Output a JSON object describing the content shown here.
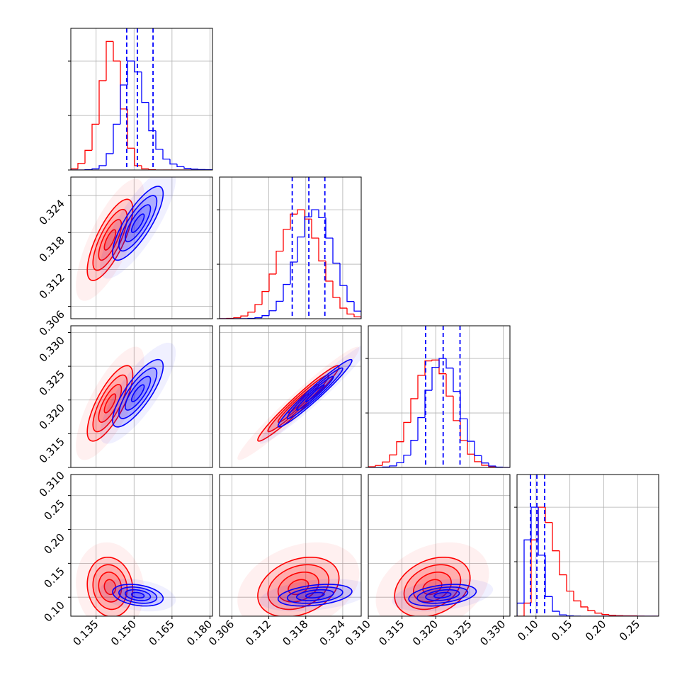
{
  "chart_data": {
    "type": "corner",
    "grid": true,
    "parameters": [
      {
        "lim": [
          0.125,
          0.181
        ],
        "ticks": [
          0.135,
          {
            "value": 0.15,
            "label": "0.150"
          },
          0.165,
          {
            "value": 0.18,
            "label": "0.180"
          }
        ],
        "bins": [
          0.125,
          0.1278,
          0.1306,
          0.1334,
          0.1362,
          0.139,
          0.1418,
          0.1446,
          0.1474,
          0.1502,
          0.153,
          0.1558,
          0.1586,
          0.1614,
          0.1642,
          0.167,
          0.1698,
          0.1726,
          0.1754,
          0.1782,
          0.181
        ]
      },
      {
        "lim": [
          0.304,
          0.327
        ],
        "ticks": [
          0.306,
          0.312,
          0.318,
          0.324
        ],
        "bins": [
          0.304,
          0.30515,
          0.3063,
          0.30745,
          0.3086,
          0.30975,
          0.3109,
          0.31205,
          0.3132,
          0.31435,
          0.3155,
          0.31665,
          0.3178,
          0.31895,
          0.3201,
          0.32125,
          0.3224,
          0.32355,
          0.3247,
          0.32585,
          0.327
        ]
      },
      {
        "lim": [
          0.31,
          0.331
        ],
        "ticks": [
          {
            "value": 0.31,
            "label": "0.310"
          },
          0.315,
          {
            "value": 0.32,
            "label": "0.320"
          },
          0.325,
          {
            "value": 0.33,
            "label": "0.330"
          }
        ],
        "bins": [
          0.31,
          0.31105,
          0.3121,
          0.31315,
          0.3142,
          0.31525,
          0.3163,
          0.31735,
          0.3184,
          0.31945,
          0.3205,
          0.32155,
          0.3226,
          0.32365,
          0.3247,
          0.32575,
          0.3268,
          0.32785,
          0.3289,
          0.32995,
          0.331
        ]
      },
      {
        "lim": [
          0.072,
          0.281
        ],
        "ticks": [
          {
            "value": 0.1,
            "label": "0.10"
          },
          0.15,
          {
            "value": 0.2,
            "label": "0.20"
          },
          0.25
        ],
        "bins": [
          0.072,
          0.08245,
          0.0929,
          0.10335,
          0.1138,
          0.12425,
          0.1347,
          0.14515,
          0.1556,
          0.16605,
          0.1765,
          0.18695,
          0.1974,
          0.20785,
          0.2183,
          0.22875,
          0.2392,
          0.24965,
          0.2601,
          0.27055,
          0.281
        ]
      }
    ],
    "hist_ylim": [
      0,
      1300
    ],
    "hist_yticks": [
      0,
      500,
      1000
    ],
    "levels": [
      0.5,
      1,
      1.5,
      2
    ],
    "series": [
      {
        "color": "#ff0000",
        "means": [
          0.1405,
          0.3168,
          0.3195,
          0.115
        ],
        "sds": [
          0.0045,
          0.0033,
          0.0028,
          0.022
        ],
        "correlations": [
          [
            0.75
          ],
          [
            0.75,
            0.97
          ],
          [
            -0.1,
            0.3,
            0.3
          ]
        ],
        "counts": [
          [
            10,
            60,
            180,
            420,
            820,
            1180,
            1000,
            560,
            200,
            40,
            10,
            2,
            0,
            0,
            0,
            0,
            0,
            0,
            0,
            0
          ],
          [
            1,
            3,
            9,
            25,
            60,
            130,
            250,
            410,
            620,
            820,
            960,
            1000,
            915,
            740,
            530,
            345,
            195,
            97,
            43,
            17
          ],
          [
            6,
            18,
            50,
            115,
            236,
            413,
            631,
            845,
            978,
            986,
            860,
            655,
            430,
            248,
            122,
            53,
            20,
            7,
            2,
            0
          ],
          [
            0,
            120,
            700,
            1000,
            860,
            600,
            380,
            230,
            140,
            85,
            50,
            28,
            15,
            9,
            5,
            3,
            3,
            1,
            0,
            0
          ]
        ]
      },
      {
        "color": "#0000ff",
        "means": [
          0.1515,
          0.3195,
          0.321,
          0.103
        ],
        "sds": [
          0.005,
          0.003,
          0.0025,
          0.008
        ],
        "correlations": [
          [
            0.8
          ],
          [
            0.8,
            0.97
          ],
          [
            -0.3,
            0.35,
            0.35
          ]
        ],
        "counts": [
          [
            0,
            0,
            2,
            10,
            40,
            150,
            420,
            780,
            1000,
            900,
            620,
            360,
            190,
            100,
            55,
            30,
            15,
            8,
            4,
            2
          ],
          [
            0,
            0,
            0,
            1,
            3,
            9,
            28,
            73,
            160,
            315,
            520,
            750,
            935,
            1000,
            927,
            740,
            510,
            305,
            158,
            70
          ],
          [
            0,
            1,
            4,
            14,
            43,
            112,
            249,
            458,
            708,
            919,
            1000,
            912,
            697,
            446,
            240,
            108,
            41,
            13,
            3,
            1
          ],
          [
            120,
            700,
            1000,
            560,
            180,
            45,
            12,
            3,
            1,
            0,
            0,
            0,
            0,
            0,
            0,
            0,
            0,
            0,
            0,
            0
          ]
        ],
        "quantiles": [
          [
            0.1471,
            0.1513,
            0.1575
          ],
          [
            0.3158,
            0.3185,
            0.3211
          ],
          [
            0.3185,
            0.3211,
            0.3236
          ],
          [
            0.0919,
            0.1013,
            0.1128
          ]
        ]
      }
    ]
  }
}
